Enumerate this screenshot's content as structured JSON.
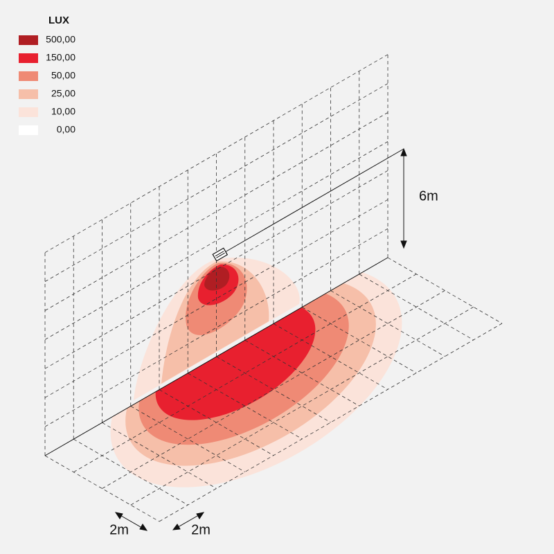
{
  "legend": {
    "title": "LUX",
    "items": [
      {
        "label": "500,00",
        "color": "#b01e23"
      },
      {
        "label": "150,00",
        "color": "#e8202f"
      },
      {
        "label": "50,00",
        "color": "#ef8a75"
      },
      {
        "label": "25,00",
        "color": "#f6bfa9"
      },
      {
        "label": "10,00",
        "color": "#fbe3da"
      },
      {
        "label": "0,00",
        "color": "#ffffff"
      }
    ]
  },
  "dimensions": {
    "height": "6m",
    "depth_1": "2m",
    "depth_2": "2m"
  }
}
